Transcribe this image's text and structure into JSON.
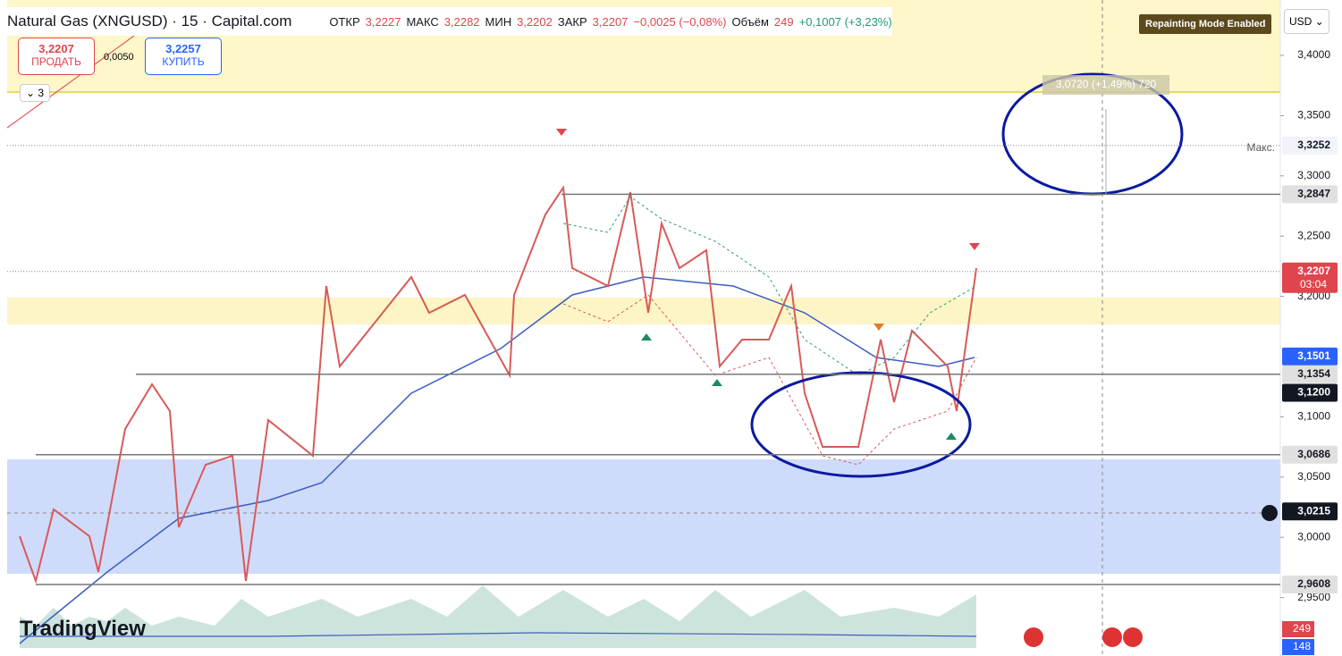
{
  "header": {
    "title": "Natural Gas (XNGUSD) · 15 · Capital.com",
    "open_label": "ОТКР",
    "open": "3,2227",
    "high_label": "МАКС",
    "high": "3,2282",
    "low_label": "МИН",
    "low": "3,2202",
    "close_label": "ЗАКР",
    "close": "3,2207",
    "change": "−0,0025 (−0,08%)",
    "volume_label": "Объём",
    "volume": "249",
    "volume_change": "+0,1007 (+3,23%)"
  },
  "trade": {
    "sell_price": "3,2207",
    "sell_label": "ПРОДАТЬ",
    "spread": "0,0050",
    "buy_price": "3,2257",
    "buy_label": "КУПИТЬ"
  },
  "indicators_count": "3",
  "repaint_notice": "Repainting Mode Enabled",
  "currency": "USD",
  "logo": "TradingView",
  "max_label": "Макс.",
  "measure": {
    "label": "3,0720 (+1,49%) 720"
  },
  "price_axis": {
    "ylim": [
      2.9015,
      3.446
    ],
    "ticks": [
      {
        "value": 3.4,
        "label": "3,4000"
      },
      {
        "value": 3.35,
        "label": "3,3500"
      },
      {
        "value": 3.3,
        "label": "3,3000"
      },
      {
        "value": 3.25,
        "label": "3,2500"
      },
      {
        "value": 3.2,
        "label": "3,2000"
      },
      {
        "value": 3.1,
        "label": "3,1000"
      },
      {
        "value": 3.05,
        "label": "3,0500"
      },
      {
        "value": 3.0,
        "label": "3,0000"
      },
      {
        "value": 2.95,
        "label": "2,9500"
      }
    ],
    "badges": [
      {
        "value": 3.3252,
        "label": "3,3252",
        "style": "light"
      },
      {
        "value": 3.2847,
        "label": "3,2847",
        "style": "grey"
      },
      {
        "value": 3.2207,
        "label": "3,2207",
        "sub": "03:04",
        "style": "red"
      },
      {
        "value": 3.1501,
        "label": "3,1501",
        "style": "blue"
      },
      {
        "value": 3.1354,
        "label": "3,1354",
        "style": "grey"
      },
      {
        "value": 3.12,
        "label": "3,1200",
        "style": "dark"
      },
      {
        "value": 3.0686,
        "label": "3,0686",
        "style": "grey"
      },
      {
        "value": 3.0215,
        "label": "3,0215",
        "style": "dark"
      },
      {
        "value": 2.9608,
        "label": "2,9608",
        "style": "grey"
      }
    ]
  },
  "volume_badges": [
    {
      "label": "249",
      "style": "red"
    },
    {
      "label": "148",
      "style": "blue"
    }
  ]
}
